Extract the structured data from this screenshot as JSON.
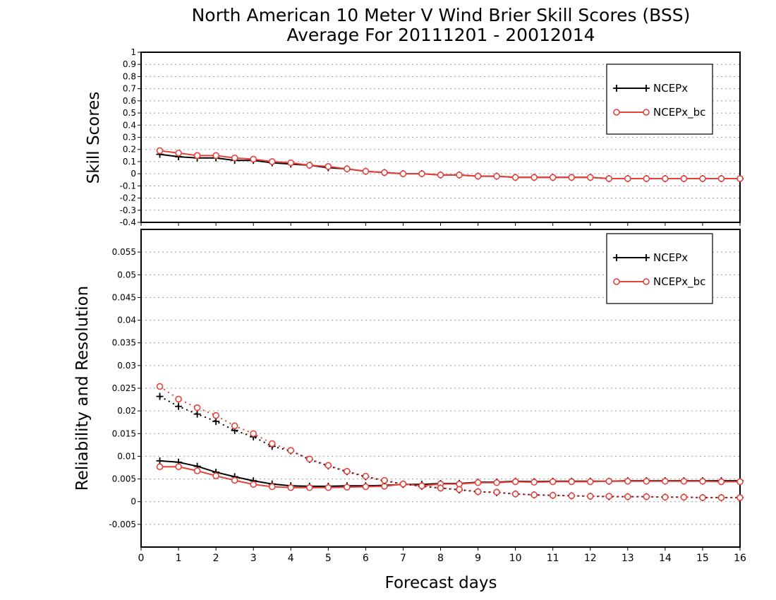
{
  "title": "North American 10 Meter V Wind Brier Skill Scores (BSS)",
  "subtitle": "Average For 20111201 - 20012014",
  "xlabel": "Forecast days",
  "colors": {
    "ncepx": "#000000",
    "ncepx_bc": "#e8413c",
    "grid": "#9a9a9a"
  },
  "chart_data": [
    {
      "type": "line",
      "ylabel": "Skill Scores",
      "xlim": [
        0,
        16
      ],
      "ylim": [
        -0.4,
        1
      ],
      "xticks": [
        "0",
        "1",
        "2",
        "3",
        "4",
        "5",
        "6",
        "7",
        "8",
        "9",
        "10",
        "11",
        "12",
        "13",
        "14",
        "15",
        "16"
      ],
      "yticks": [
        "1",
        "0.9",
        "0.8",
        "0.7",
        "0.6",
        "0.5",
        "0.4",
        "0.3",
        "0.2",
        "0.1",
        "0",
        "-0.1",
        "-0.2",
        "-0.3",
        "-0.4"
      ],
      "grid": true,
      "legend": "top-right",
      "legend_entries": [
        "NCEPx",
        "NCEPx_bc"
      ],
      "x": [
        0.5,
        1,
        1.5,
        2,
        2.5,
        3,
        3.5,
        4,
        4.5,
        5,
        5.5,
        6,
        6.5,
        7,
        7.5,
        8,
        8.5,
        9,
        9.5,
        10,
        10.5,
        11,
        11.5,
        12,
        12.5,
        13,
        13.5,
        14,
        14.5,
        15,
        15.5,
        16
      ],
      "series": [
        {
          "name": "NCEPx",
          "style": "solid",
          "marker": "plus",
          "values": [
            0.16,
            0.14,
            0.13,
            0.13,
            0.11,
            0.11,
            0.09,
            0.08,
            0.07,
            0.05,
            0.04,
            0.02,
            0.01,
            0.0,
            0.0,
            -0.01,
            -0.01,
            -0.02,
            -0.02,
            -0.03,
            -0.03,
            -0.03,
            -0.03,
            -0.03,
            -0.04,
            -0.04,
            -0.04,
            -0.04,
            -0.04,
            -0.04,
            -0.04,
            -0.04
          ]
        },
        {
          "name": "NCEPx_bc",
          "style": "solid",
          "marker": "circle",
          "values": [
            0.19,
            0.17,
            0.15,
            0.15,
            0.13,
            0.12,
            0.1,
            0.09,
            0.07,
            0.06,
            0.04,
            0.02,
            0.01,
            0.0,
            0.0,
            -0.01,
            -0.01,
            -0.02,
            -0.02,
            -0.03,
            -0.03,
            -0.03,
            -0.03,
            -0.03,
            -0.04,
            -0.04,
            -0.04,
            -0.04,
            -0.04,
            -0.04,
            -0.04,
            -0.04
          ]
        }
      ]
    },
    {
      "type": "line",
      "ylabel": "Reliability and Resolution",
      "xlim": [
        0,
        16
      ],
      "ylim": [
        -0.01,
        0.06
      ],
      "xticks": [
        "0",
        "1",
        "2",
        "3",
        "4",
        "5",
        "6",
        "7",
        "8",
        "9",
        "10",
        "11",
        "12",
        "13",
        "14",
        "15",
        "16"
      ],
      "yticks": [
        "0.055",
        "0.05",
        "0.045",
        "0.04",
        "0.035",
        "0.03",
        "0.025",
        "0.02",
        "0.015",
        "0.01",
        "0.005",
        "0",
        "-0.005"
      ],
      "grid": true,
      "legend": "top-right",
      "legend_entries": [
        "NCEPx",
        "NCEPx_bc"
      ],
      "x": [
        0.5,
        1,
        1.5,
        2,
        2.5,
        3,
        3.5,
        4,
        4.5,
        5,
        5.5,
        6,
        6.5,
        7,
        7.5,
        8,
        8.5,
        9,
        9.5,
        10,
        10.5,
        11,
        11.5,
        12,
        12.5,
        13,
        13.5,
        14,
        14.5,
        15,
        15.5,
        16
      ],
      "series": [
        {
          "name": "NCEPx",
          "measure": "reliability",
          "style": "solid",
          "marker": "plus",
          "values": [
            0.009,
            0.0087,
            0.0078,
            0.0065,
            0.0055,
            0.0046,
            0.0039,
            0.0035,
            0.0034,
            0.0034,
            0.0035,
            0.0035,
            0.0036,
            0.0038,
            0.0038,
            0.004,
            0.004,
            0.0043,
            0.0043,
            0.0045,
            0.0044,
            0.0045,
            0.0045,
            0.0045,
            0.0045,
            0.0046,
            0.0046,
            0.0046,
            0.0046,
            0.0046,
            0.0046,
            0.0046
          ]
        },
        {
          "name": "NCEPx_bc",
          "measure": "reliability",
          "style": "solid",
          "marker": "circle",
          "values": [
            0.0077,
            0.0077,
            0.0068,
            0.0057,
            0.0047,
            0.0038,
            0.0033,
            0.0031,
            0.0031,
            0.0031,
            0.0032,
            0.0033,
            0.0034,
            0.0039,
            0.0035,
            0.0039,
            0.0039,
            0.0042,
            0.0042,
            0.0044,
            0.0043,
            0.0044,
            0.0044,
            0.0044,
            0.0045,
            0.0045,
            0.0045,
            0.0045,
            0.0045,
            0.0045,
            0.0044,
            0.0044
          ]
        },
        {
          "name": "NCEPx",
          "measure": "resolution",
          "style": "dotted",
          "marker": "plus",
          "values": [
            0.0232,
            0.021,
            0.0193,
            0.0177,
            0.0157,
            0.0143,
            0.0122,
            0.0112,
            0.0093,
            0.0079,
            0.0066,
            0.0055,
            0.0046,
            0.0039,
            0.0034,
            0.003,
            0.0026,
            0.0022,
            0.002,
            0.0017,
            0.0015,
            0.0014,
            0.0013,
            0.0012,
            0.0011,
            0.0011,
            0.0011,
            0.001,
            0.001,
            0.0009,
            0.0009,
            0.0009
          ]
        },
        {
          "name": "NCEPx_bc",
          "measure": "resolution",
          "style": "dotted",
          "marker": "circle",
          "values": [
            0.0254,
            0.0226,
            0.0207,
            0.019,
            0.0167,
            0.015,
            0.0128,
            0.0113,
            0.0094,
            0.008,
            0.0067,
            0.0056,
            0.0047,
            0.0039,
            0.0035,
            0.003,
            0.0027,
            0.0022,
            0.0021,
            0.0017,
            0.0015,
            0.0014,
            0.0013,
            0.0012,
            0.0012,
            0.0011,
            0.0011,
            0.001,
            0.001,
            0.0009,
            0.0009,
            0.0009
          ]
        }
      ]
    }
  ]
}
